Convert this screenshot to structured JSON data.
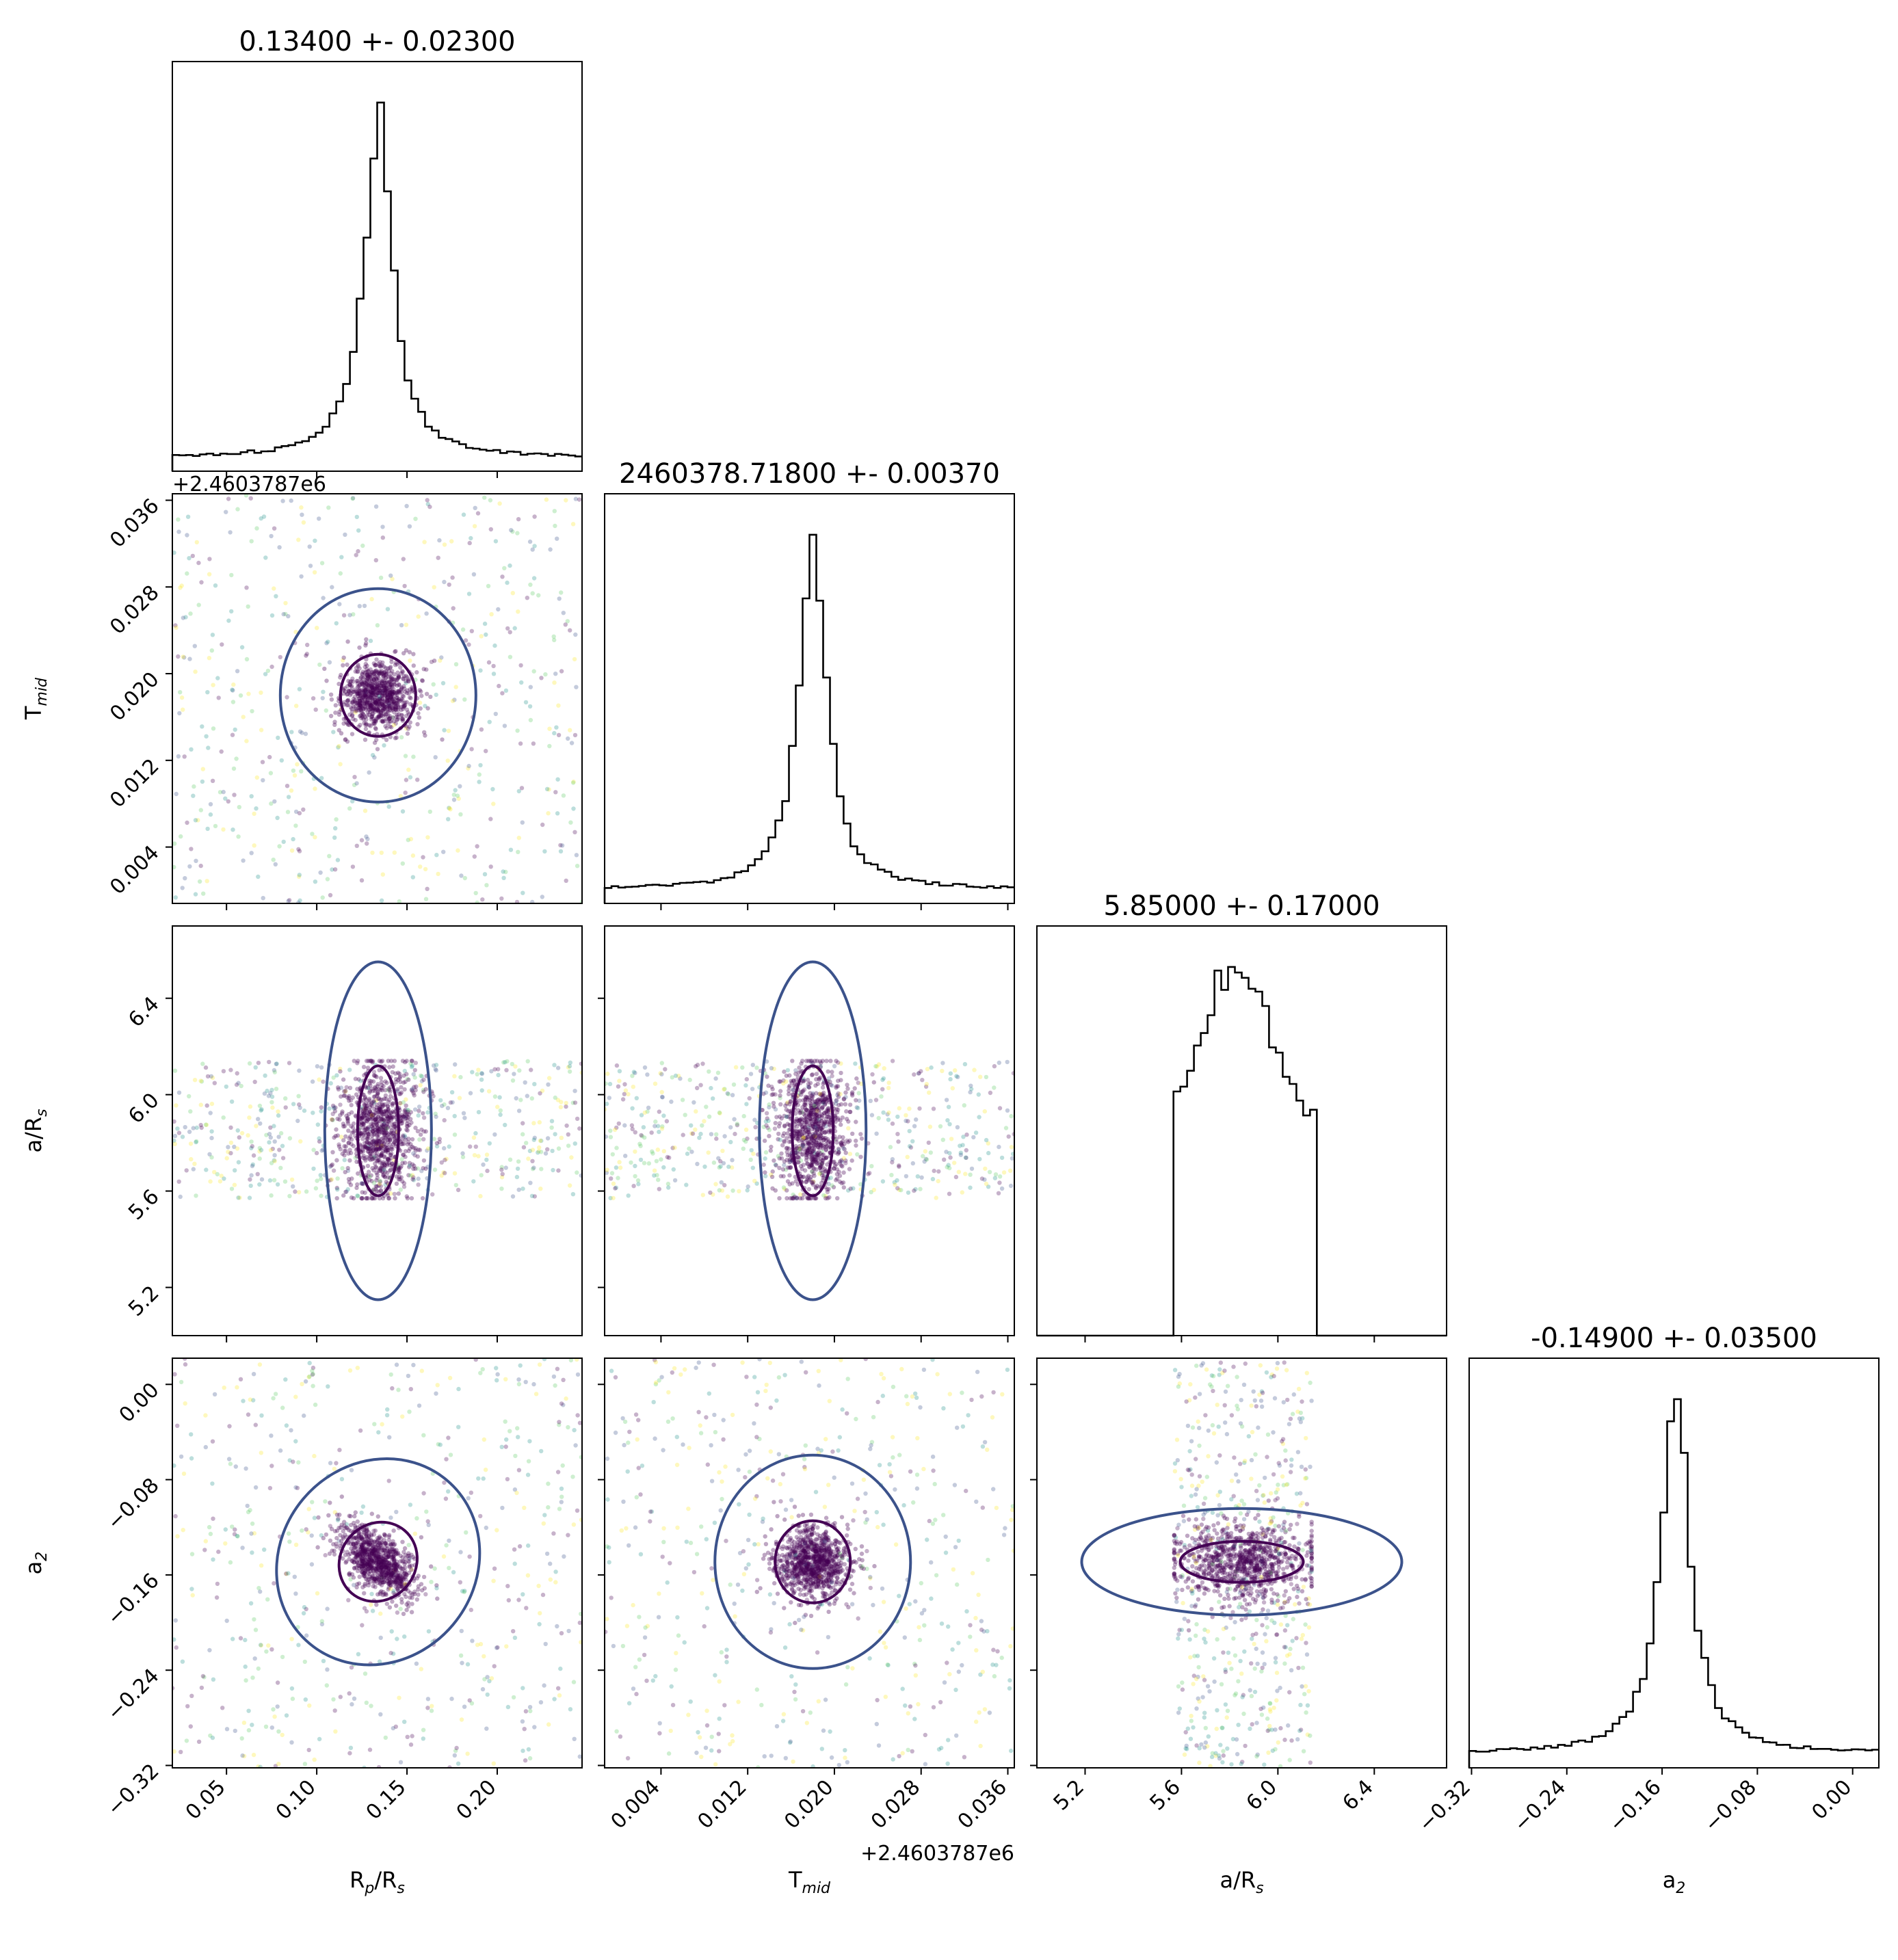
{
  "chart_data": {
    "type": "corner",
    "parameters": [
      {
        "key": "rp",
        "label": "R",
        "label_sub": "p",
        "label_rest": "/R",
        "label_sub2": "s",
        "title": "0.13400 +- 0.02300",
        "range": [
          0.02,
          0.247
        ],
        "ticks": [
          "0.05",
          "0.10",
          "0.15",
          "0.20"
        ],
        "tick_values": [
          0.05,
          0.1,
          0.15,
          0.2
        ],
        "offset": "",
        "mean": 0.134,
        "sigma": 0.023
      },
      {
        "key": "tmid",
        "label": "T",
        "label_sub": "mid",
        "label_rest": "",
        "label_sub2": "",
        "title": "2460378.71800 +- 0.00370",
        "range": [
          -0.0012,
          0.0366
        ],
        "ticks": [
          "0.004",
          "0.012",
          "0.020",
          "0.028",
          "0.036"
        ],
        "tick_values": [
          0.004,
          0.012,
          0.02,
          0.028,
          0.036
        ],
        "offset": "+2.4603787e6",
        "mean": 0.018,
        "sigma": 0.0037
      },
      {
        "key": "ars",
        "label": "a/R",
        "label_sub": "s",
        "label_rest": "",
        "label_sub2": "",
        "title": "5.85000 +- 0.17000",
        "range": [
          5.0,
          6.7
        ],
        "ticks": [
          "5.2",
          "5.6",
          "6.0",
          "6.4"
        ],
        "tick_values": [
          5.2,
          5.6,
          6.0,
          6.4
        ],
        "offset": "",
        "mean": 5.85,
        "sigma": 0.17
      },
      {
        "key": "a2",
        "label": "a",
        "label_sub": "2",
        "label_rest": "",
        "label_sub2": "",
        "title": "-0.14900 +- 0.03500",
        "range": [
          -0.322,
          0.022
        ],
        "ticks": [
          "−0.32",
          "−0.24",
          "−0.16",
          "−0.08",
          "0.00"
        ],
        "tick_values": [
          -0.32,
          -0.24,
          -0.16,
          -0.08,
          0.0
        ],
        "offset": "",
        "mean": -0.149,
        "sigma": 0.035
      }
    ],
    "grid": false,
    "colormap": "viridis",
    "histogram_color": "#000000",
    "contour_colors": [
      "#440154",
      "#3b528b",
      "#fde725"
    ],
    "point_colors": [
      "#440154",
      "#3b528b",
      "#21918c",
      "#5ec962",
      "#fde725"
    ]
  }
}
